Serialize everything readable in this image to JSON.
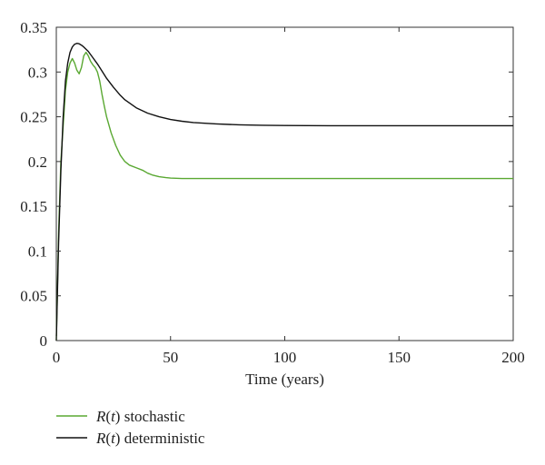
{
  "chart_data": {
    "type": "line",
    "xlabel": "Time (years)",
    "ylabel": "",
    "xlim": [
      0,
      200
    ],
    "ylim": [
      0,
      0.35
    ],
    "x_ticks": [
      0,
      50,
      100,
      150,
      200
    ],
    "x_tick_labels": [
      "0",
      "50",
      "100",
      "150",
      "200"
    ],
    "y_ticks": [
      0,
      0.05,
      0.1,
      0.15,
      0.2,
      0.25,
      0.3,
      0.35
    ],
    "y_tick_labels": [
      "0",
      "0.05",
      "0.1",
      "0.15",
      "0.2",
      "0.25",
      "0.3",
      "0.35"
    ],
    "grid": false,
    "legend_position": "bottom-left, below plot",
    "series": [
      {
        "name": "R(t) stochastic",
        "legend_var": "R",
        "legend_arg": "t",
        "legend_suffix": "stochastic",
        "color": "#5aa832",
        "x": [
          0,
          1,
          2,
          3,
          4,
          5,
          6,
          7,
          8,
          9,
          10,
          11,
          12,
          13,
          14,
          15,
          16,
          17,
          18,
          19,
          20,
          21,
          22,
          24,
          26,
          28,
          30,
          32,
          35,
          38,
          40,
          42,
          45,
          48,
          50,
          55,
          60,
          70,
          80,
          100,
          120,
          150,
          175,
          200
        ],
        "y": [
          0,
          0.12,
          0.2,
          0.24,
          0.28,
          0.3,
          0.31,
          0.315,
          0.31,
          0.302,
          0.298,
          0.305,
          0.318,
          0.322,
          0.318,
          0.312,
          0.308,
          0.305,
          0.3,
          0.29,
          0.275,
          0.262,
          0.25,
          0.232,
          0.218,
          0.207,
          0.2,
          0.196,
          0.193,
          0.19,
          0.187,
          0.185,
          0.183,
          0.182,
          0.1815,
          0.181,
          0.181,
          0.181,
          0.181,
          0.181,
          0.181,
          0.181,
          0.181,
          0.181
        ]
      },
      {
        "name": "R(t) deterministic",
        "legend_var": "R",
        "legend_arg": "t",
        "legend_suffix": "deterministic",
        "color": "#111111",
        "x": [
          0,
          1,
          2,
          3,
          4,
          5,
          6,
          7,
          8,
          9,
          10,
          11,
          12,
          14,
          16,
          18,
          20,
          22,
          25,
          28,
          30,
          35,
          40,
          45,
          50,
          55,
          60,
          70,
          80,
          90,
          100,
          120,
          150,
          175,
          200
        ],
        "y": [
          0,
          0.11,
          0.19,
          0.25,
          0.29,
          0.31,
          0.322,
          0.328,
          0.331,
          0.332,
          0.3315,
          0.33,
          0.328,
          0.323,
          0.316,
          0.309,
          0.301,
          0.293,
          0.283,
          0.274,
          0.269,
          0.26,
          0.254,
          0.25,
          0.247,
          0.245,
          0.2435,
          0.242,
          0.241,
          0.2405,
          0.2402,
          0.24,
          0.24,
          0.24,
          0.24
        ]
      }
    ]
  }
}
